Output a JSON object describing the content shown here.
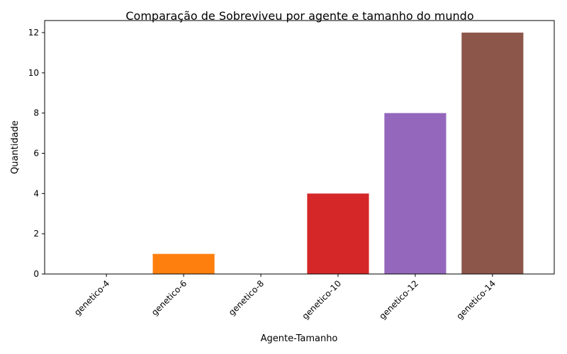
{
  "chart_data": {
    "type": "bar",
    "title": "Comparação de Sobreviveu por agente e tamanho do mundo",
    "xlabel": "Agente-Tamanho",
    "ylabel": "Quantidade",
    "categories": [
      "genetico-4",
      "genetico-6",
      "genetico-8",
      "genetico-10",
      "genetico-12",
      "genetico-14"
    ],
    "values": [
      0,
      1,
      0,
      4,
      8,
      12
    ],
    "colors": [
      "#1f77b4",
      "#ff7f0e",
      "#2ca02c",
      "#d62728",
      "#9467bd",
      "#8c564b"
    ],
    "ylim": [
      0,
      12.6
    ],
    "yticks": [
      0,
      2,
      4,
      6,
      8,
      10,
      12
    ],
    "grid": false,
    "legend": "none"
  }
}
